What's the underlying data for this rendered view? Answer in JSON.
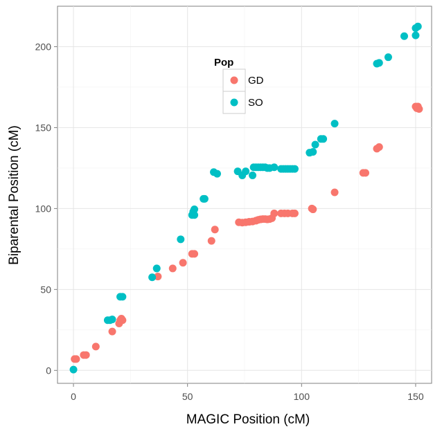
{
  "chart_data": {
    "type": "scatter",
    "xlabel": "MAGIC Position (cM)",
    "ylabel": "Biparental Position (cM)",
    "xlim": [
      -7,
      157
    ],
    "ylim": [
      -8,
      225
    ],
    "xticks": [
      0,
      50,
      100,
      150
    ],
    "yticks": [
      0,
      50,
      100,
      150,
      200
    ],
    "grid": true,
    "legend": {
      "title": "Pop",
      "position": "top-center-inside"
    },
    "series": [
      {
        "name": "GD",
        "color": "#F8766D",
        "points": [
          [
            0.5,
            7
          ],
          [
            1.2,
            7
          ],
          [
            4.5,
            9.5
          ],
          [
            5.5,
            9.5
          ],
          [
            9.8,
            14.7
          ],
          [
            17,
            24
          ],
          [
            20,
            29
          ],
          [
            20.5,
            31
          ],
          [
            21,
            32
          ],
          [
            21.5,
            31
          ],
          [
            37,
            58
          ],
          [
            43.5,
            63
          ],
          [
            48,
            66.5
          ],
          [
            52,
            72
          ],
          [
            53,
            72
          ],
          [
            60.5,
            80
          ],
          [
            62,
            87
          ],
          [
            72.5,
            91.5
          ],
          [
            74,
            91.3
          ],
          [
            75.5,
            91.5
          ],
          [
            77,
            91.8
          ],
          [
            78.5,
            92
          ],
          [
            80,
            92.5
          ],
          [
            81,
            93
          ],
          [
            82,
            93.3
          ],
          [
            83,
            93.5
          ],
          [
            84,
            93.5
          ],
          [
            85,
            93.3
          ],
          [
            86,
            93.5
          ],
          [
            87,
            94
          ],
          [
            88,
            97
          ],
          [
            91,
            97
          ],
          [
            92.5,
            97
          ],
          [
            94,
            97
          ],
          [
            96,
            97
          ],
          [
            97,
            97
          ],
          [
            104.5,
            100
          ],
          [
            105,
            99.5
          ],
          [
            114.5,
            110
          ],
          [
            127,
            122
          ],
          [
            128,
            122
          ],
          [
            133,
            137
          ],
          [
            134,
            138
          ],
          [
            150,
            163
          ],
          [
            150.5,
            162
          ],
          [
            151,
            163
          ],
          [
            151.5,
            161.5
          ]
        ]
      },
      {
        "name": "SO",
        "color": "#00BFC4",
        "points": [
          [
            0,
            0.5
          ],
          [
            15,
            31
          ],
          [
            16,
            31
          ],
          [
            17,
            31.5
          ],
          [
            20.5,
            45.5
          ],
          [
            21.5,
            45.5
          ],
          [
            34.5,
            57.5
          ],
          [
            36.5,
            63
          ],
          [
            47,
            81
          ],
          [
            52,
            96
          ],
          [
            52.5,
            98
          ],
          [
            53,
            99.5
          ],
          [
            53,
            96
          ],
          [
            57,
            106
          ],
          [
            57.5,
            106
          ],
          [
            61.5,
            122.5
          ],
          [
            63,
            121.5
          ],
          [
            72,
            123
          ],
          [
            74,
            120.5
          ],
          [
            75.5,
            123
          ],
          [
            78.5,
            120.5
          ],
          [
            79,
            125.5
          ],
          [
            80,
            125.5
          ],
          [
            81,
            125.5
          ],
          [
            82,
            125.5
          ],
          [
            83,
            125.5
          ],
          [
            84,
            125.5
          ],
          [
            85,
            125
          ],
          [
            86,
            125
          ],
          [
            88,
            125.5
          ],
          [
            91,
            124.5
          ],
          [
            92,
            124.5
          ],
          [
            93,
            124.5
          ],
          [
            94,
            124.5
          ],
          [
            95,
            124.5
          ],
          [
            96,
            124.5
          ],
          [
            97,
            124.5
          ],
          [
            103.5,
            134.5
          ],
          [
            105,
            135
          ],
          [
            106,
            139.5
          ],
          [
            108.5,
            143
          ],
          [
            109.5,
            143
          ],
          [
            114.5,
            152.5
          ],
          [
            133,
            189.5
          ],
          [
            134,
            190
          ],
          [
            138,
            193.5
          ],
          [
            145,
            206.5
          ],
          [
            150,
            207
          ],
          [
            150,
            211.5
          ],
          [
            151,
            212.5
          ]
        ]
      }
    ]
  }
}
